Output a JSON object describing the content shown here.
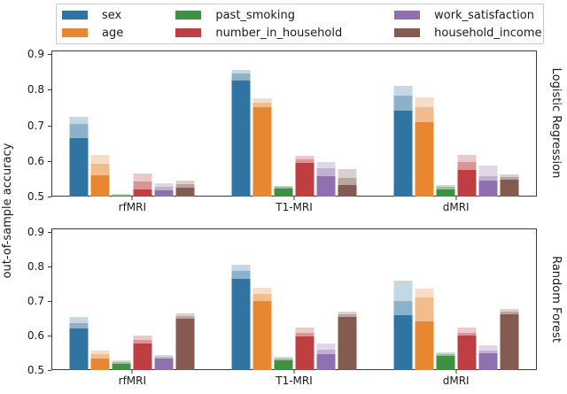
{
  "figure": {
    "background": "#ffffff",
    "axis_color": "#3a3a3a"
  },
  "legend": {
    "entries": [
      {
        "label": "sex",
        "color": "#2f74a2"
      },
      {
        "label": "age",
        "color": "#e8872f"
      },
      {
        "label": "past_smoking",
        "color": "#3d9140"
      },
      {
        "label": "number_in_household",
        "color": "#bf3e41"
      },
      {
        "label": "work_satisfaction",
        "color": "#8f71b2"
      },
      {
        "label": "household_income",
        "color": "#855a50"
      }
    ]
  },
  "chart_data": {
    "type": "bar",
    "title": "",
    "xlabel": "",
    "ylabel": "out-of-sample accuracy",
    "ylim": [
      0.5,
      0.91
    ],
    "yticks": [
      "0.5",
      "0.6",
      "0.7",
      "0.8",
      "0.9"
    ],
    "grid": false,
    "legend_position": "top",
    "categories": [
      "rfMRI",
      "T1-MRI",
      "dMRI"
    ],
    "series_names": [
      "sex",
      "age",
      "past_smoking",
      "number_in_household",
      "work_satisfaction",
      "household_income"
    ],
    "bar_value_format": "[solid_top, mid_shade_top, max_top] — overlapping translucent layers per bar, baseline 0.5",
    "subplots": [
      {
        "label": "Logistic Regression",
        "groups": [
          {
            "category": "rfMRI",
            "bars": [
              [
                0.665,
                0.705,
                0.725
              ],
              [
                0.56,
                0.592,
                0.618
              ],
              [
                0.502,
                0.505,
                0.508
              ],
              [
                0.52,
                0.542,
                0.565
              ],
              [
                0.518,
                0.528,
                0.538
              ],
              [
                0.524,
                0.534,
                0.546
              ]
            ]
          },
          {
            "category": "T1-MRI",
            "bars": [
              [
                0.825,
                0.845,
                0.856
              ],
              [
                0.75,
                0.763,
                0.776
              ],
              [
                0.522,
                0.527,
                0.531
              ],
              [
                0.594,
                0.604,
                0.615
              ],
              [
                0.557,
                0.58,
                0.596
              ],
              [
                0.532,
                0.552,
                0.578
              ]
            ]
          },
          {
            "category": "dMRI",
            "bars": [
              [
                0.74,
                0.783,
                0.81
              ],
              [
                0.71,
                0.75,
                0.778
              ],
              [
                0.521,
                0.527,
                0.532
              ],
              [
                0.575,
                0.596,
                0.616
              ],
              [
                0.544,
                0.558,
                0.586
              ],
              [
                0.548,
                0.555,
                0.563
              ]
            ]
          }
        ]
      },
      {
        "label": "Random Forest",
        "groups": [
          {
            "category": "rfMRI",
            "bars": [
              [
                0.62,
                0.636,
                0.653
              ],
              [
                0.533,
                0.545,
                0.557
              ],
              [
                0.519,
                0.524,
                0.529
              ],
              [
                0.578,
                0.588,
                0.599
              ],
              [
                0.533,
                0.539,
                0.545
              ],
              [
                0.648,
                0.656,
                0.663
              ]
            ]
          },
          {
            "category": "T1-MRI",
            "bars": [
              [
                0.764,
                0.786,
                0.806
              ],
              [
                0.7,
                0.721,
                0.739
              ],
              [
                0.528,
                0.533,
                0.538
              ],
              [
                0.597,
                0.608,
                0.622
              ],
              [
                0.547,
                0.559,
                0.576
              ],
              [
                0.655,
                0.662,
                0.669
              ]
            ]
          },
          {
            "category": "dMRI",
            "bars": [
              [
                0.66,
                0.7,
                0.758
              ],
              [
                0.64,
                0.71,
                0.735
              ],
              [
                0.54,
                0.546,
                0.552
              ],
              [
                0.6,
                0.608,
                0.622
              ],
              [
                0.55,
                0.556,
                0.572
              ],
              [
                0.662,
                0.67,
                0.678
              ]
            ]
          }
        ]
      }
    ]
  }
}
